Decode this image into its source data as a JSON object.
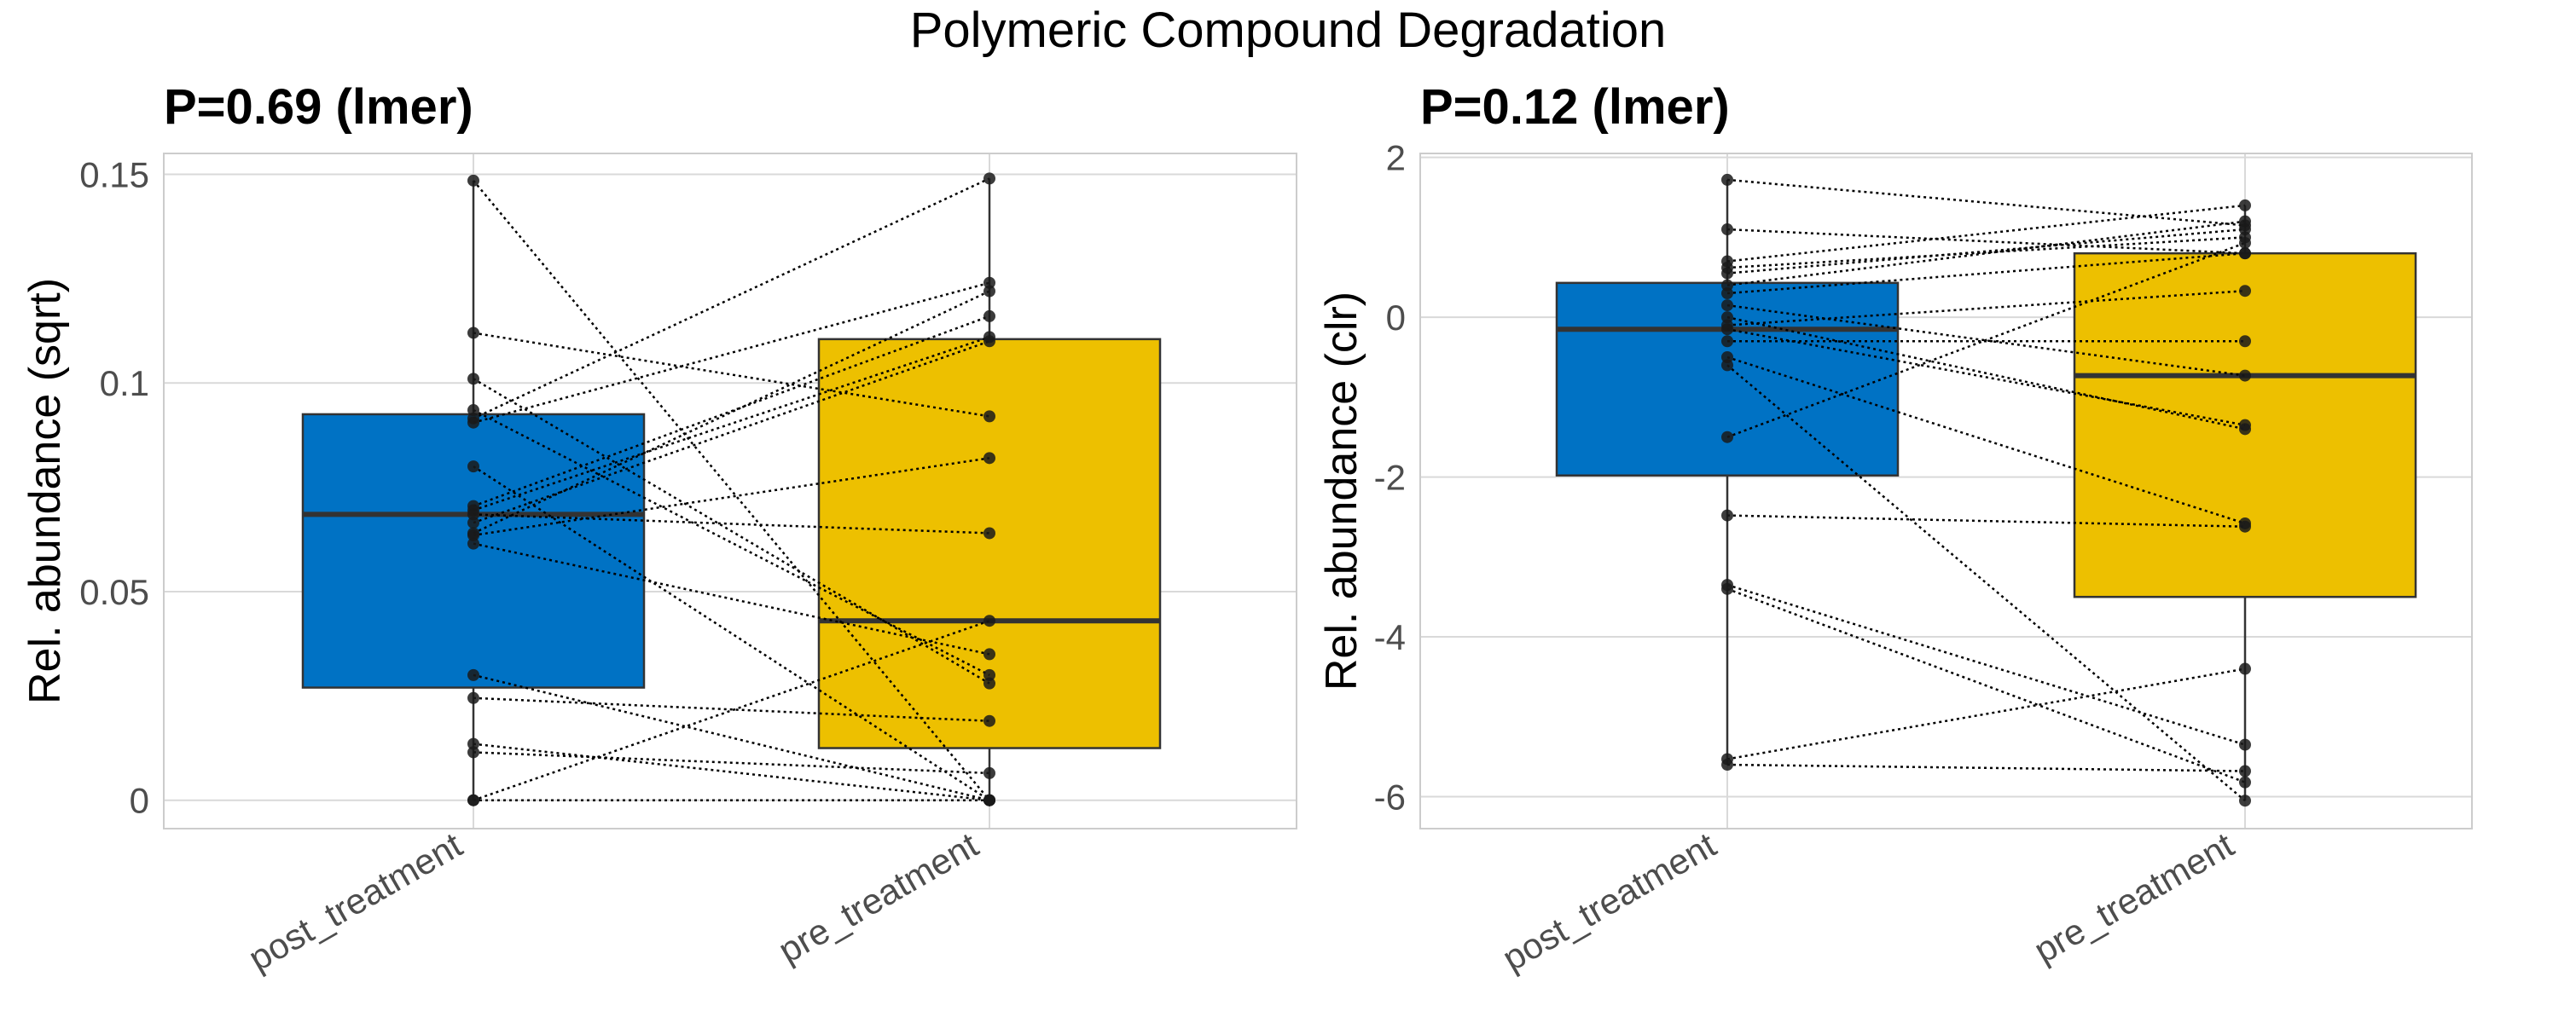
{
  "title": "Polymeric Compound Degradation",
  "colors": {
    "post_fill": "#0072C4",
    "pre_fill": "#EDC000",
    "grid": "#D9D9D9",
    "panel_border": "#CCCCCC",
    "box_stroke": "#333333",
    "median": "#333333",
    "point": "#1A1A1A",
    "pair_line": "#000000",
    "tick_text": "#4D4D4D",
    "title_text": "#000000"
  },
  "chart_data": [
    {
      "type": "box",
      "title": "P=0.69 (lmer)",
      "ylabel": "Rel. abundance (sqrt)",
      "xlabel": "",
      "ylim": [
        -0.0068,
        0.155
      ],
      "yticks": [
        0,
        0.05,
        0.1,
        0.15
      ],
      "ytick_labels": [
        "0",
        "0.05",
        "0.1",
        "0.15"
      ],
      "categories": [
        "post_treatment",
        "pre_treatment"
      ],
      "boxes": [
        {
          "category": "post_treatment",
          "q1": 0.027,
          "median": 0.0685,
          "q3": 0.0925,
          "whisker_low": 0.0,
          "whisker_high": 0.1485
        },
        {
          "category": "pre_treatment",
          "q1": 0.0125,
          "median": 0.043,
          "q3": 0.1105,
          "whisker_low": 0.0,
          "whisker_high": 0.149
        }
      ],
      "pairs": [
        [
          0.1485,
          0.0
        ],
        [
          0.112,
          0.092
        ],
        [
          0.101,
          0.028
        ],
        [
          0.0935,
          0.03
        ],
        [
          0.0915,
          0.149
        ],
        [
          0.0905,
          0.124
        ],
        [
          0.08,
          0.0
        ],
        [
          0.0705,
          0.116
        ],
        [
          0.0695,
          0.111
        ],
        [
          0.0685,
          0.064
        ],
        [
          0.0665,
          0.11
        ],
        [
          0.064,
          0.122
        ],
        [
          0.0635,
          0.082
        ],
        [
          0.0615,
          0.035
        ],
        [
          0.03,
          0.0
        ],
        [
          0.0245,
          0.019
        ],
        [
          0.0135,
          0.0
        ],
        [
          0.0115,
          0.0065
        ],
        [
          0.0,
          0.0
        ],
        [
          0.0,
          0.043
        ]
      ]
    },
    {
      "type": "box",
      "title": "P=0.12 (lmer)",
      "ylabel": "Rel. abundance (clr)",
      "xlabel": "",
      "ylim": [
        -6.4,
        2.05
      ],
      "yticks": [
        -6,
        -4,
        -2,
        0,
        2
      ],
      "ytick_labels": [
        "-6",
        "-4",
        "-2",
        "0",
        "2"
      ],
      "categories": [
        "post_treatment",
        "pre_treatment"
      ],
      "boxes": [
        {
          "category": "post_treatment",
          "q1": -1.98,
          "median": -0.15,
          "q3": 0.43,
          "whisker_low": -5.6,
          "whisker_high": 1.72
        },
        {
          "category": "pre_treatment",
          "q1": -3.5,
          "median": -0.73,
          "q3": 0.8,
          "whisker_low": -6.05,
          "whisker_high": 1.4
        }
      ],
      "pairs": [
        [
          1.72,
          1.15
        ],
        [
          1.1,
          0.8
        ],
        [
          0.7,
          1.4
        ],
        [
          0.62,
          1.0
        ],
        [
          0.55,
          1.1
        ],
        [
          0.3,
          0.8
        ],
        [
          0.0,
          -1.4
        ],
        [
          -0.1,
          0.33
        ],
        [
          -0.15,
          -1.35
        ],
        [
          -0.3,
          -0.3
        ],
        [
          -0.5,
          -2.58
        ],
        [
          -0.6,
          -6.05
        ],
        [
          -1.5,
          0.93
        ],
        [
          -2.48,
          -2.62
        ],
        [
          -3.35,
          -5.35
        ],
        [
          -3.4,
          -5.82
        ],
        [
          -5.53,
          -4.4
        ],
        [
          -5.6,
          -5.68
        ],
        [
          0.15,
          -0.73
        ],
        [
          0.4,
          1.2
        ]
      ]
    }
  ]
}
